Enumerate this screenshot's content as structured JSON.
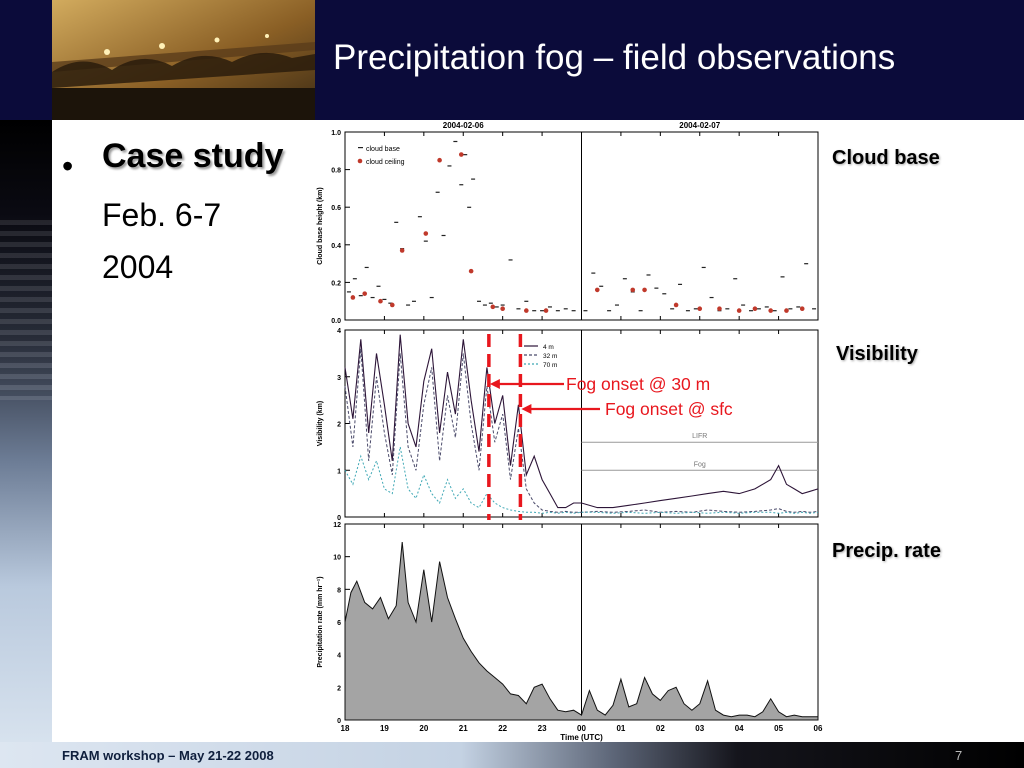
{
  "slide": {
    "title": "Precipitation fog – field observations",
    "bullet_heading": "Case study",
    "bullet_lines": [
      "Feb. 6-7",
      "2004"
    ],
    "footer": "FRAM workshop – May 21-22 2008",
    "page_number": "7"
  },
  "panel_labels": {
    "cloud": "Cloud base",
    "visibility": "Visibility",
    "precip": "Precip. rate"
  },
  "annotations": {
    "fog_30m": "Fog onset @ 30 m",
    "fog_sfc": "Fog onset @ sfc",
    "fog_30m_time": 21.65,
    "fog_sfc_time": 22.45
  },
  "colors": {
    "header_bg": "#0b0b3a",
    "annotation_red": "#e8171e",
    "cloud_ceiling": "#c0392b",
    "vis_4m": "#2d1538",
    "vis_70m": "#3fa8b5",
    "precip_fill": "#a4a4a4"
  },
  "chart_data": [
    {
      "type": "scatter",
      "top_labels": [
        "2004-02-06",
        "2004-02-07"
      ],
      "ylabel": "Cloud base height (km)",
      "ylim": [
        0,
        1.0
      ],
      "yticks": [
        "0.0",
        "0.2",
        "0.4",
        "0.6",
        "0.8",
        "1.0"
      ],
      "xlim": [
        18,
        30
      ],
      "legend": [
        "cloud base",
        "cloud ceiling"
      ],
      "legend_position": "top-left",
      "series": [
        {
          "name": "cloud base",
          "x": [
            18.1,
            18.25,
            18.4,
            18.55,
            18.7,
            18.85,
            19.0,
            19.15,
            19.3,
            19.45,
            19.6,
            19.75,
            19.9,
            20.05,
            20.2,
            20.35,
            20.5,
            20.65,
            20.8,
            20.95,
            21.05,
            21.15,
            21.25,
            21.4,
            21.55,
            21.7,
            21.85,
            22.0,
            22.2,
            22.4,
            22.6,
            22.8,
            23.0,
            23.2,
            23.4,
            23.6,
            23.8,
            24.1,
            24.3,
            24.5,
            24.7,
            24.9,
            25.1,
            25.3,
            25.5,
            25.7,
            25.9,
            26.1,
            26.3,
            26.5,
            26.7,
            26.9,
            27.1,
            27.3,
            27.5,
            27.7,
            27.9,
            28.1,
            28.3,
            28.5,
            28.7,
            28.9,
            29.1,
            29.3,
            29.5,
            29.7,
            29.9
          ],
          "y": [
            0.15,
            0.22,
            0.13,
            0.28,
            0.12,
            0.18,
            0.11,
            0.09,
            0.52,
            0.38,
            0.08,
            0.1,
            0.55,
            0.42,
            0.12,
            0.68,
            0.45,
            0.82,
            0.95,
            0.72,
            0.88,
            0.6,
            0.75,
            0.1,
            0.08,
            0.09,
            0.07,
            0.08,
            0.32,
            0.06,
            0.1,
            0.05,
            0.05,
            0.07,
            0.05,
            0.06,
            0.05,
            0.05,
            0.25,
            0.18,
            0.05,
            0.08,
            0.22,
            0.15,
            0.05,
            0.24,
            0.17,
            0.14,
            0.06,
            0.19,
            0.05,
            0.06,
            0.28,
            0.12,
            0.05,
            0.06,
            0.22,
            0.08,
            0.05,
            0.06,
            0.07,
            0.05,
            0.23,
            0.06,
            0.07,
            0.3,
            0.06
          ]
        },
        {
          "name": "cloud ceiling",
          "x": [
            18.2,
            18.5,
            18.9,
            19.2,
            19.45,
            20.05,
            20.4,
            20.95,
            21.2,
            21.75,
            22.0,
            22.6,
            23.1,
            24.4,
            25.3,
            25.6,
            26.4,
            27.0,
            27.5,
            28.0,
            28.4,
            28.8,
            29.2,
            29.6
          ],
          "y": [
            0.12,
            0.14,
            0.1,
            0.08,
            0.37,
            0.46,
            0.85,
            0.88,
            0.26,
            0.07,
            0.06,
            0.05,
            0.05,
            0.16,
            0.16,
            0.16,
            0.08,
            0.06,
            0.06,
            0.05,
            0.06,
            0.05,
            0.05,
            0.06
          ]
        }
      ]
    },
    {
      "type": "line",
      "ylabel": "Visibility (km)",
      "ylim": [
        0,
        4
      ],
      "yticks": [
        "0",
        "1",
        "2",
        "3",
        "4"
      ],
      "xlim": [
        18,
        30
      ],
      "legend": [
        "4 m",
        "32 m",
        "70 m"
      ],
      "legend_position": "top-center",
      "reference_lines": [
        {
          "label": "LIFR",
          "y": 1.6
        },
        {
          "label": "Fog",
          "y": 1.0
        }
      ],
      "x": [
        18.0,
        18.2,
        18.4,
        18.6,
        18.8,
        19.0,
        19.2,
        19.4,
        19.6,
        19.8,
        20.0,
        20.2,
        20.4,
        20.6,
        20.8,
        21.0,
        21.2,
        21.4,
        21.6,
        21.8,
        22.0,
        22.2,
        22.4,
        22.6,
        22.8,
        23.0,
        23.2,
        23.4,
        23.6,
        23.8,
        24.0,
        24.4,
        24.8,
        25.2,
        25.6,
        26.0,
        26.4,
        26.8,
        27.2,
        27.6,
        28.0,
        28.4,
        28.8,
        29.0,
        29.2,
        29.4,
        29.6,
        29.8,
        30.0
      ],
      "series": [
        {
          "name": "4 m",
          "values": [
            3.2,
            2.1,
            3.8,
            1.8,
            3.5,
            2.4,
            1.2,
            3.9,
            2.0,
            1.5,
            2.9,
            3.6,
            1.8,
            3.1,
            2.2,
            3.8,
            2.5,
            1.4,
            3.2,
            2.0,
            2.6,
            1.1,
            2.4,
            0.9,
            1.3,
            0.8,
            0.5,
            0.2,
            0.2,
            0.3,
            0.3,
            0.2,
            0.2,
            0.25,
            0.3,
            0.35,
            0.4,
            0.45,
            0.5,
            0.55,
            0.5,
            0.6,
            0.8,
            1.1,
            0.7,
            0.6,
            0.5,
            0.55,
            0.6
          ]
        },
        {
          "name": "32 m",
          "values": [
            2.8,
            1.5,
            3.6,
            1.2,
            3.0,
            1.8,
            0.9,
            3.5,
            1.5,
            1.0,
            2.4,
            3.2,
            1.2,
            2.6,
            1.7,
            3.5,
            2.0,
            1.0,
            2.8,
            1.6,
            2.2,
            0.8,
            1.9,
            0.6,
            0.3,
            0.15,
            0.12,
            0.1,
            0.12,
            0.1,
            0.1,
            0.12,
            0.1,
            0.12,
            0.15,
            0.1,
            0.12,
            0.1,
            0.15,
            0.12,
            0.1,
            0.12,
            0.15,
            0.18,
            0.12,
            0.1,
            0.12,
            0.1,
            0.12
          ]
        },
        {
          "name": "70 m",
          "values": [
            1.0,
            0.7,
            1.3,
            0.8,
            1.2,
            0.6,
            0.5,
            1.5,
            0.6,
            0.4,
            0.9,
            0.5,
            0.3,
            0.8,
            0.4,
            0.6,
            0.3,
            0.2,
            0.5,
            0.3,
            0.2,
            0.15,
            0.12,
            0.1,
            0.1,
            0.08,
            0.1,
            0.08,
            0.1,
            0.08,
            0.1,
            0.1,
            0.08,
            0.1,
            0.08,
            0.1,
            0.08,
            0.1,
            0.08,
            0.1,
            0.08,
            0.1,
            0.1,
            0.08,
            0.1,
            0.08,
            0.1,
            0.08,
            0.1
          ]
        }
      ]
    },
    {
      "type": "area",
      "ylabel": "Precipitation rate (mm hr⁻¹)",
      "xlabel": "Time (UTC)",
      "ylim": [
        0,
        12
      ],
      "yticks": [
        "0",
        "2",
        "4",
        "6",
        "8",
        "10",
        "12"
      ],
      "xlim": [
        18,
        30
      ],
      "xtick_labels": [
        "18",
        "19",
        "20",
        "21",
        "22",
        "23",
        "00",
        "01",
        "02",
        "03",
        "04",
        "05",
        "06"
      ],
      "x": [
        18.0,
        18.15,
        18.3,
        18.5,
        18.7,
        18.9,
        19.1,
        19.3,
        19.45,
        19.6,
        19.8,
        20.0,
        20.2,
        20.4,
        20.6,
        20.8,
        21.0,
        21.2,
        21.4,
        21.6,
        21.8,
        22.0,
        22.2,
        22.4,
        22.6,
        22.8,
        23.0,
        23.2,
        23.4,
        23.6,
        23.8,
        24.0,
        24.2,
        24.4,
        24.6,
        24.8,
        25.0,
        25.2,
        25.4,
        25.6,
        25.8,
        26.0,
        26.2,
        26.4,
        26.6,
        26.8,
        27.0,
        27.2,
        27.4,
        27.6,
        27.8,
        28.0,
        28.2,
        28.4,
        28.6,
        28.8,
        29.0,
        29.2,
        29.4,
        29.6,
        29.8,
        30.0
      ],
      "series": [
        {
          "name": "",
          "values": [
            6.0,
            7.8,
            8.5,
            7.2,
            6.8,
            7.5,
            6.2,
            7.0,
            10.9,
            7.2,
            6.0,
            9.2,
            6.0,
            9.7,
            7.5,
            6.2,
            5.0,
            4.2,
            3.5,
            3.0,
            2.6,
            2.2,
            1.6,
            1.5,
            1.0,
            2.0,
            2.2,
            1.3,
            0.6,
            0.5,
            0.6,
            0.3,
            1.8,
            0.6,
            0.3,
            0.9,
            2.5,
            0.8,
            1.0,
            2.6,
            1.6,
            1.2,
            1.8,
            2.0,
            1.0,
            0.6,
            1.0,
            2.4,
            0.6,
            0.3,
            0.2,
            0.3,
            0.3,
            0.2,
            0.5,
            1.3,
            0.5,
            0.2,
            0.3,
            0.2,
            0.2,
            0.2
          ]
        }
      ]
    }
  ]
}
